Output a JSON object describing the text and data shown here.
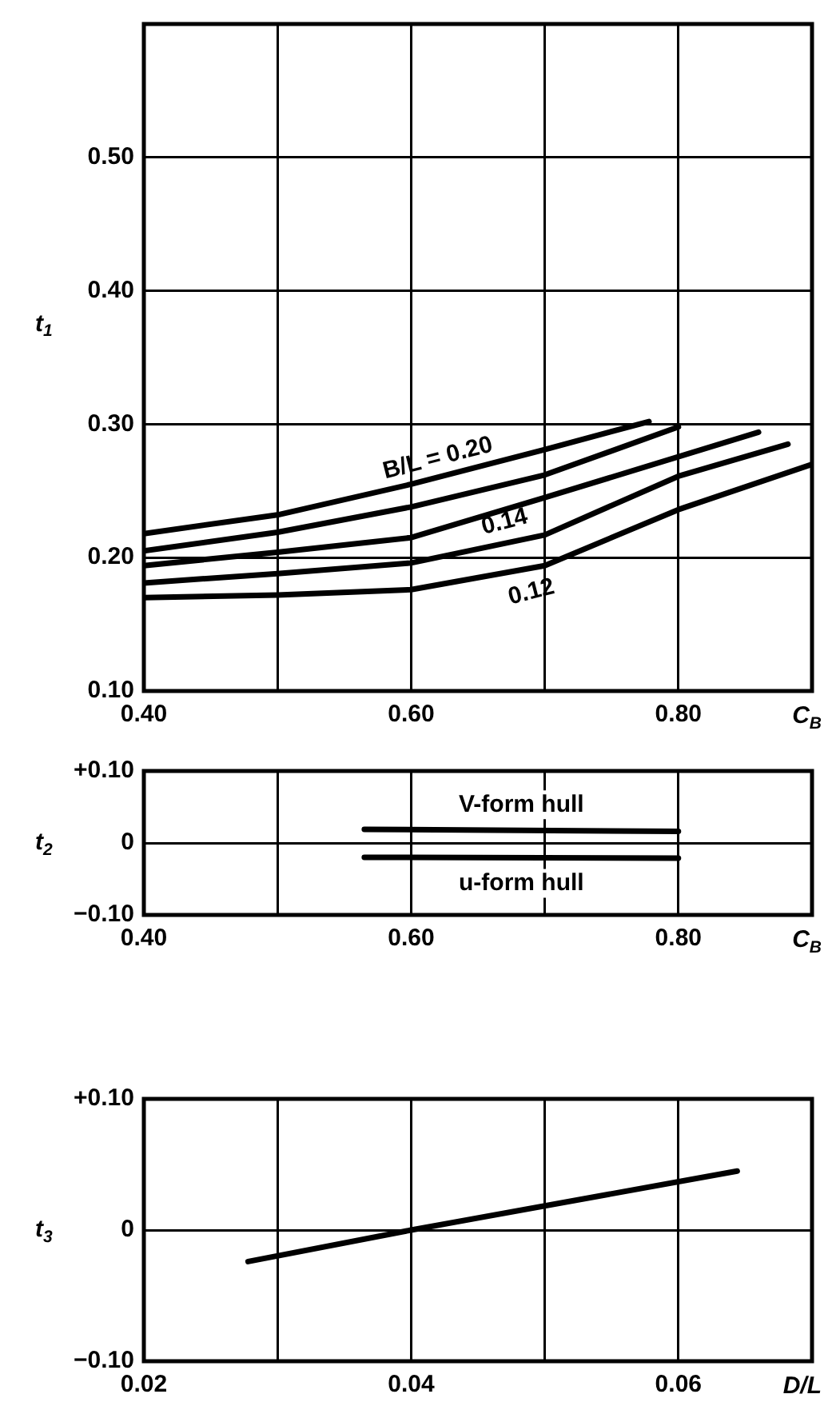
{
  "chart_data": [
    {
      "type": "line",
      "xlabel": "C$_{B}$",
      "ylabel": "t$_{1}$",
      "xlim": [
        0.4,
        0.9
      ],
      "xticks": [
        {
          "value": 0.4,
          "label": "0.40"
        },
        {
          "value": 0.5,
          "label": null
        },
        {
          "value": 0.6,
          "label": "0.60"
        },
        {
          "value": 0.7,
          "label": null
        },
        {
          "value": 0.8,
          "label": "0.80"
        },
        {
          "value": 0.9,
          "label": null
        }
      ],
      "ylim": [
        0.1,
        0.6
      ],
      "yticks": [
        {
          "value": 0.1,
          "label": "0.10"
        },
        {
          "value": 0.2,
          "label": "0.20"
        },
        {
          "value": 0.3,
          "label": "0.30"
        },
        {
          "value": 0.4,
          "label": "0.40"
        },
        {
          "value": 0.5,
          "label": "0.50"
        },
        {
          "value": 0.6,
          "label": null
        }
      ],
      "grid": true,
      "series": [
        {
          "color": "#000000",
          "x": [
            0.4,
            0.5,
            0.6,
            0.7,
            0.778
          ],
          "values": [
            0.218,
            0.232,
            0.255,
            0.281,
            0.302
          ]
        },
        {
          "color": "#000000",
          "x": [
            0.4,
            0.5,
            0.6,
            0.7,
            0.8
          ],
          "values": [
            0.205,
            0.219,
            0.238,
            0.262,
            0.298
          ]
        },
        {
          "color": "#000000",
          "x": [
            0.4,
            0.5,
            0.6,
            0.7,
            0.86
          ],
          "values": [
            0.194,
            0.204,
            0.215,
            0.245,
            0.294
          ]
        },
        {
          "color": "#000000",
          "x": [
            0.4,
            0.5,
            0.6,
            0.7,
            0.8,
            0.882
          ],
          "values": [
            0.181,
            0.188,
            0.196,
            0.217,
            0.261,
            0.285
          ]
        },
        {
          "color": "#000000",
          "x": [
            0.4,
            0.5,
            0.6,
            0.7,
            0.8,
            0.9
          ],
          "values": [
            0.17,
            0.172,
            0.176,
            0.194,
            0.236,
            0.27
          ]
        }
      ],
      "annotations": [
        {
          "text": "B/L = 0.20",
          "x": 0.62,
          "y": 0.26
        },
        {
          "text": "0.14",
          "x": 0.67,
          "y": 0.211
        },
        {
          "text": "0.12",
          "x": 0.69,
          "y": 0.192
        }
      ]
    },
    {
      "type": "line",
      "xlabel": "C$_{B}$",
      "ylabel": "t$_{2}$",
      "xlim": [
        0.4,
        0.9
      ],
      "xticks": [
        {
          "value": 0.4,
          "label": "0.40"
        },
        {
          "value": 0.5,
          "label": null
        },
        {
          "value": 0.6,
          "label": "0.60"
        },
        {
          "value": 0.7,
          "label": null
        },
        {
          "value": 0.8,
          "label": "0.80"
        },
        {
          "value": 0.9,
          "label": null
        }
      ],
      "ylim": [
        -0.1,
        0.1
      ],
      "yticks": [
        {
          "value": -0.1,
          "label": "−0.10"
        },
        {
          "value": 0,
          "label": "0"
        },
        {
          "value": 0.1,
          "label": "+0.10"
        }
      ],
      "grid": true,
      "series": [
        {
          "name": "V-form hull",
          "color": "#000000",
          "x": [
            0.565,
            0.8
          ],
          "values": [
            0.019,
            0.016
          ]
        },
        {
          "name": "u-form hull",
          "color": "#000000",
          "x": [
            0.565,
            0.8
          ],
          "values": [
            -0.02,
            -0.021
          ]
        }
      ]
    },
    {
      "type": "line",
      "xlabel": "D/L",
      "ylabel": "t$_{3}$",
      "xlim": [
        0.02,
        0.07
      ],
      "xticks": [
        {
          "value": 0.02,
          "label": "0.02"
        },
        {
          "value": 0.03,
          "label": null
        },
        {
          "value": 0.04,
          "label": "0.04"
        },
        {
          "value": 0.05,
          "label": null
        },
        {
          "value": 0.06,
          "label": "0.06"
        },
        {
          "value": 0.07,
          "label": null
        }
      ],
      "ylim": [
        -0.1,
        0.1
      ],
      "yticks": [
        {
          "value": -0.1,
          "label": "−0.10"
        },
        {
          "value": 0,
          "label": "0"
        },
        {
          "value": 0.1,
          "label": "+0.10"
        }
      ],
      "grid": true,
      "series": [
        {
          "color": "#000000",
          "x": [
            0.0278,
            0.04,
            0.0644
          ],
          "values": [
            -0.024,
            0,
            0.045
          ]
        }
      ]
    }
  ]
}
